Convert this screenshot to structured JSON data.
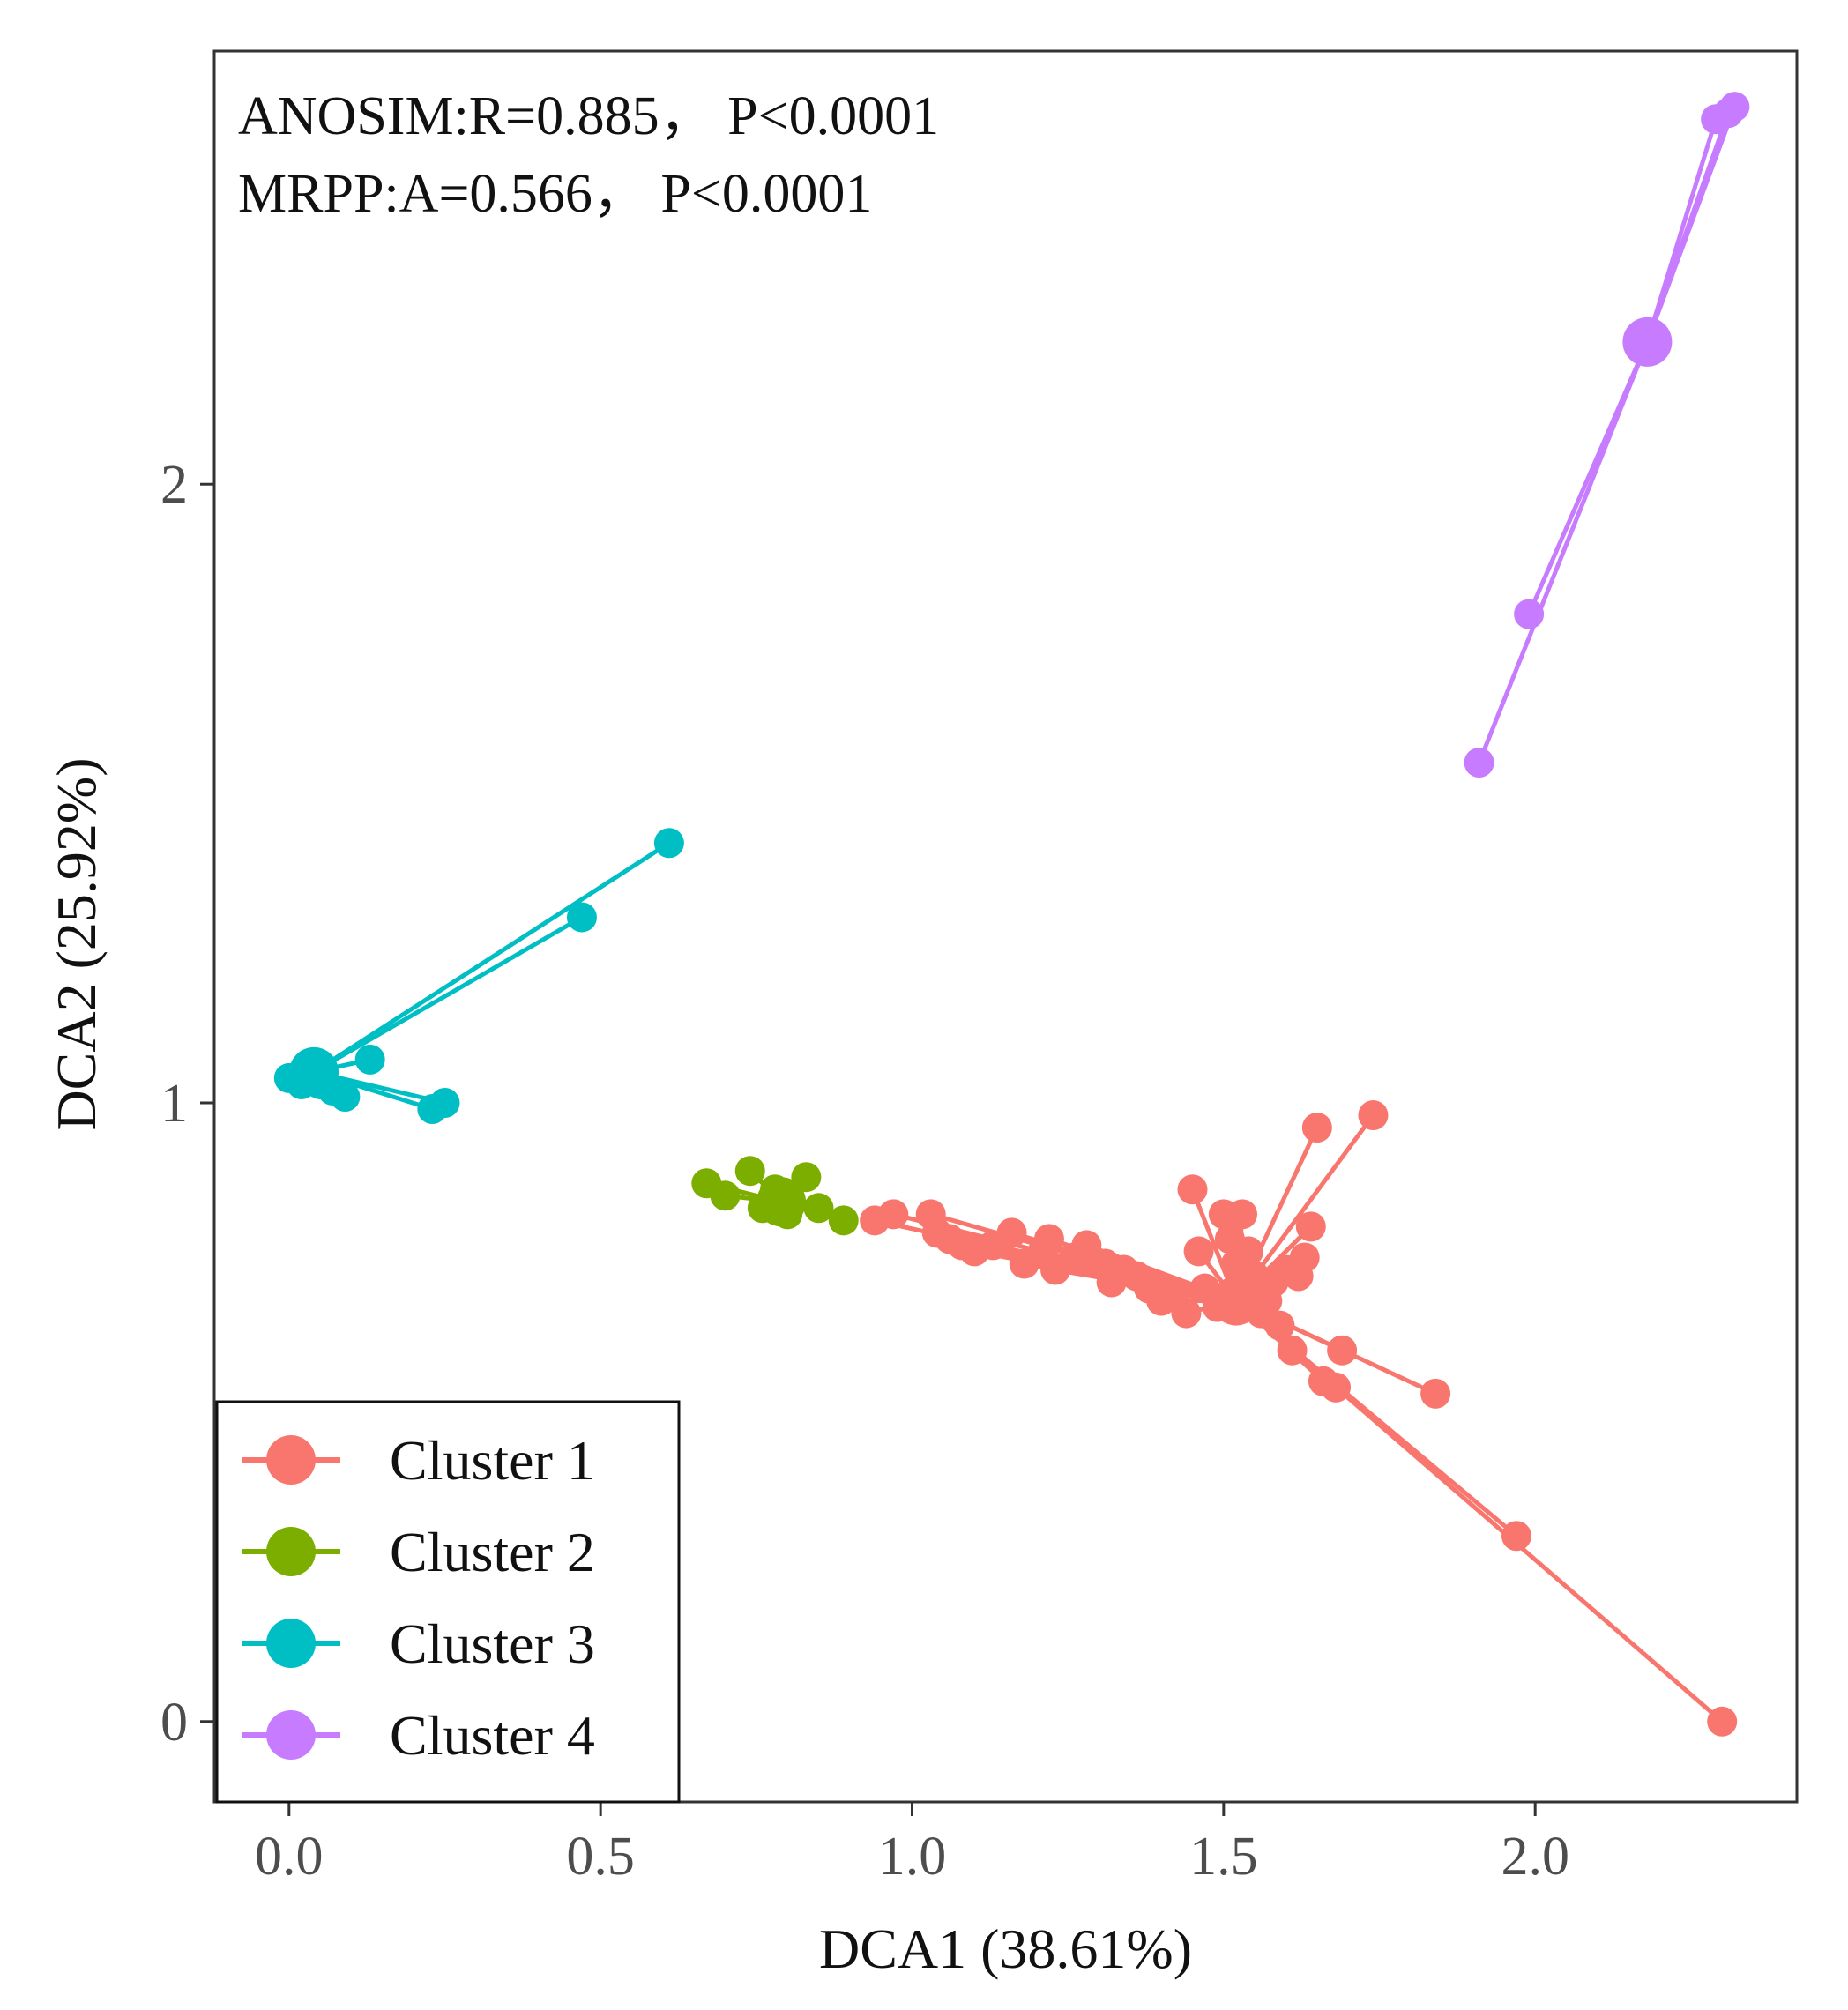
{
  "chart_data": {
    "type": "scatter",
    "subtype": "spider-ordination",
    "xlabel": "DCA1 (38.61%)",
    "ylabel": "DCA2 (25.92%)",
    "xlim": [
      -0.12,
      2.42
    ],
    "ylim": [
      -0.13,
      2.7
    ],
    "x_ticks": [
      0.0,
      0.5,
      1.0,
      1.5,
      2.0
    ],
    "x_tick_labels": [
      "0.0",
      "0.5",
      "1.0",
      "1.5",
      "2.0"
    ],
    "y_ticks": [
      0,
      1,
      2
    ],
    "y_tick_labels": [
      "0",
      "1",
      "2"
    ],
    "grid": false,
    "annotations": [
      "ANOSIM:R=0.885， P<0.0001",
      "MRPP:A=0.566， P<0.0001"
    ],
    "legend_position": "bottom-left",
    "series": [
      {
        "name": "Cluster 1",
        "color": "#F8766D",
        "centroid": [
          1.52,
          0.68
        ],
        "points": [
          [
            0.94,
            0.81
          ],
          [
            0.97,
            0.82
          ],
          [
            1.03,
            0.82
          ],
          [
            1.04,
            0.79
          ],
          [
            1.06,
            0.78
          ],
          [
            1.08,
            0.77
          ],
          [
            1.1,
            0.76
          ],
          [
            1.13,
            0.77
          ],
          [
            1.16,
            0.79
          ],
          [
            1.18,
            0.74
          ],
          [
            1.21,
            0.76
          ],
          [
            1.22,
            0.78
          ],
          [
            1.23,
            0.73
          ],
          [
            1.26,
            0.75
          ],
          [
            1.28,
            0.77
          ],
          [
            1.31,
            0.74
          ],
          [
            1.32,
            0.71
          ],
          [
            1.34,
            0.73
          ],
          [
            1.36,
            0.72
          ],
          [
            1.38,
            0.7
          ],
          [
            1.4,
            0.68
          ],
          [
            1.42,
            0.69
          ],
          [
            1.44,
            0.66
          ],
          [
            1.45,
            0.86
          ],
          [
            1.46,
            0.76
          ],
          [
            1.47,
            0.7
          ],
          [
            1.49,
            0.67
          ],
          [
            1.5,
            0.82
          ],
          [
            1.51,
            0.78
          ],
          [
            1.52,
            0.74
          ],
          [
            1.53,
            0.82
          ],
          [
            1.54,
            0.76
          ],
          [
            1.55,
            0.72
          ],
          [
            1.56,
            0.66
          ],
          [
            1.57,
            0.68
          ],
          [
            1.58,
            0.71
          ],
          [
            1.59,
            0.64
          ],
          [
            1.6,
            0.73
          ],
          [
            1.61,
            0.6
          ],
          [
            1.62,
            0.72
          ],
          [
            1.63,
            0.75
          ],
          [
            1.64,
            0.8
          ],
          [
            1.65,
            0.96
          ],
          [
            1.66,
            0.55
          ],
          [
            1.68,
            0.54
          ],
          [
            1.69,
            0.6
          ],
          [
            1.74,
            0.98
          ],
          [
            1.84,
            0.53
          ],
          [
            1.97,
            0.3
          ],
          [
            2.3,
            0.0
          ]
        ]
      },
      {
        "name": "Cluster 2",
        "color": "#7CAE00",
        "centroid": [
          0.79,
          0.84
        ],
        "points": [
          [
            0.67,
            0.87
          ],
          [
            0.7,
            0.85
          ],
          [
            0.74,
            0.89
          ],
          [
            0.76,
            0.83
          ],
          [
            0.78,
            0.86
          ],
          [
            0.8,
            0.82
          ],
          [
            0.83,
            0.88
          ],
          [
            0.85,
            0.83
          ],
          [
            0.89,
            0.81
          ]
        ]
      },
      {
        "name": "Cluster 3",
        "color": "#00BFC4",
        "centroid": [
          0.04,
          1.05
        ],
        "points": [
          [
            0.0,
            1.04
          ],
          [
            0.02,
            1.03
          ],
          [
            0.04,
            1.06
          ],
          [
            0.05,
            1.03
          ],
          [
            0.07,
            1.02
          ],
          [
            0.09,
            1.01
          ],
          [
            0.13,
            1.07
          ],
          [
            0.23,
            0.99
          ],
          [
            0.25,
            1.0
          ],
          [
            0.47,
            1.3
          ],
          [
            0.61,
            1.42
          ]
        ]
      },
      {
        "name": "Cluster 4",
        "color": "#C77CFF",
        "centroid": [
          2.18,
          2.23
        ],
        "points": [
          [
            1.91,
            1.55
          ],
          [
            1.99,
            1.79
          ],
          [
            2.29,
            2.59
          ],
          [
            2.31,
            2.6
          ],
          [
            2.32,
            2.61
          ]
        ]
      }
    ]
  }
}
